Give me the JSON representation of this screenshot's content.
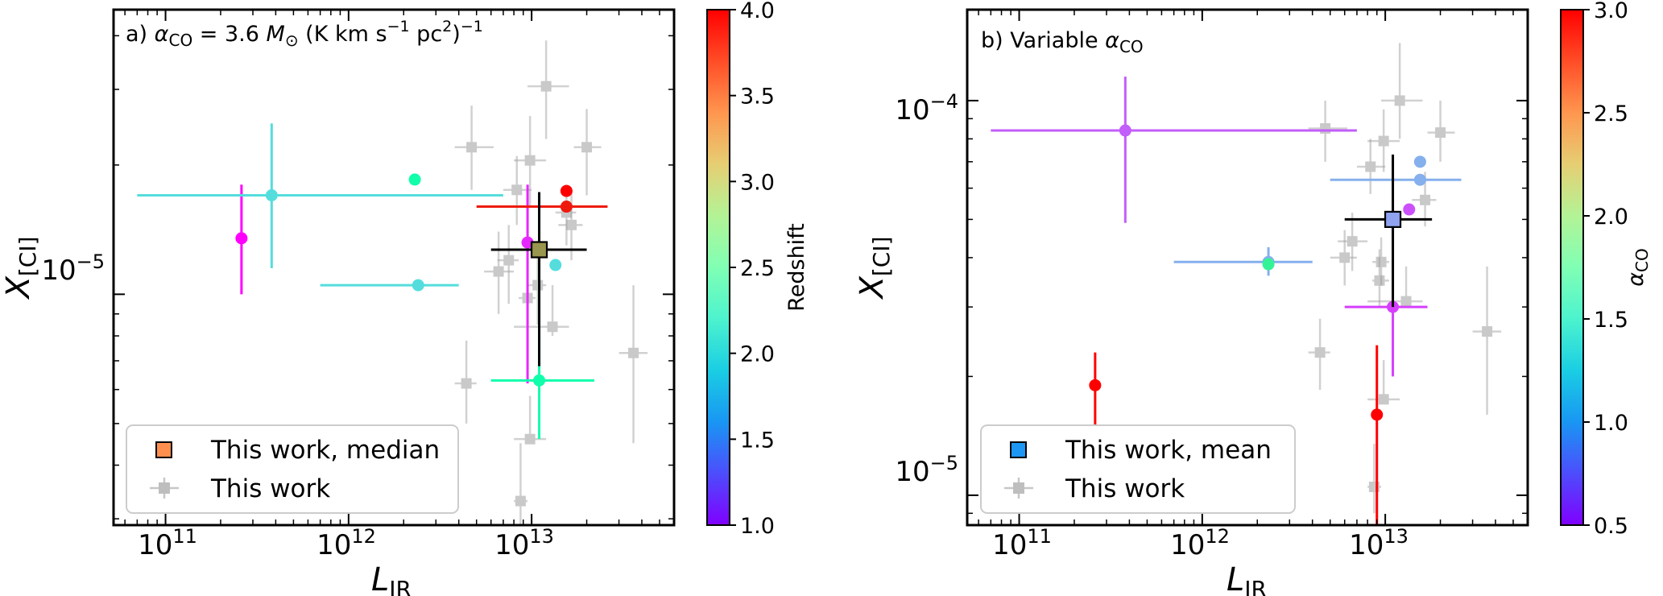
{
  "figure": {
    "panels": [
      {
        "id": "a",
        "title_prefix": "a) ",
        "title_alpha": "α",
        "title_sub": "CO",
        "title_rest": " = 3.6 ",
        "title_M": "M",
        "title_sun": "⊙",
        "title_units": " (K km s",
        "title_unit_exp1": "−1",
        "title_units2": " pc",
        "title_unit_exp2": "2",
        "title_units3": ")",
        "title_unit_exp3": "−1",
        "xlabel_main": "L",
        "xlabel_sub": "IR",
        "ylabel_main": "X",
        "ylabel_sub": "[CI]",
        "colorbar_label": "Redshift",
        "colorbar_ticks": [
          "1.0",
          "1.5",
          "2.0",
          "2.5",
          "3.0",
          "3.5",
          "4.0"
        ],
        "xticks": [
          {
            "base": "10",
            "exp": "11"
          },
          {
            "base": "10",
            "exp": "12"
          },
          {
            "base": "10",
            "exp": "13"
          }
        ],
        "yticks": [
          {
            "base": "10",
            "exp": "−5"
          }
        ],
        "legend": [
          "This work, median",
          "This work"
        ]
      },
      {
        "id": "b",
        "title_prefix": "b) Variable ",
        "title_alpha": "α",
        "title_sub": "CO",
        "xlabel_main": "L",
        "xlabel_sub": "IR",
        "ylabel_main": "X",
        "ylabel_sub": "[CI]",
        "colorbar_label_main": "α",
        "colorbar_label_sub": "CO",
        "colorbar_ticks": [
          "0.5",
          "1.0",
          "1.5",
          "2.0",
          "2.5",
          "3.0"
        ],
        "xticks": [
          {
            "base": "10",
            "exp": "11"
          },
          {
            "base": "10",
            "exp": "12"
          },
          {
            "base": "10",
            "exp": "13"
          }
        ],
        "yticks": [
          {
            "base": "10",
            "exp": "−5"
          },
          {
            "base": "10",
            "exp": "−4"
          }
        ],
        "legend": [
          "This work, mean",
          "This work"
        ]
      }
    ]
  },
  "chart_data": [
    {
      "type": "scatter",
      "title": "a) αCO = 3.6 M⊙ (K km s−1 pc2)−1",
      "xlabel": "L_IR",
      "ylabel": "X_[CI]",
      "xscale": "log",
      "yscale": "log",
      "xlim": [
        52000000000.0,
        60000000000000.0
      ],
      "ylim": [
        2.9e-06,
        4.6e-05
      ],
      "colorbar": {
        "label": "Redshift",
        "range": [
          1.0,
          4.0
        ]
      },
      "legend_position": "lower-left",
      "colored_points": [
        {
          "x": 260000000000.0,
          "y": 1.35e-05,
          "xerr": [
            0,
            0
          ],
          "yerr": [
            1e-05,
            1.8e-05
          ],
          "c": 1.0
        },
        {
          "x": 380000000000.0,
          "y": 1.7e-05,
          "xerr": [
            70000000000.0,
            7000000000000.0
          ],
          "yerr": [
            1.15e-05,
            2.5e-05
          ],
          "c": 2.0
        },
        {
          "x": 2400000000000.0,
          "y": 1.05e-05,
          "xerr": [
            700000000000.0,
            4000000000000.0
          ],
          "yerr": [
            0,
            0
          ],
          "c": 2.0
        },
        {
          "x": 2300000000000.0,
          "y": 1.85e-05,
          "xerr": [
            0,
            0
          ],
          "yerr": [
            0,
            0
          ],
          "c": 2.6
        },
        {
          "x": 9500000000000.0,
          "y": 1.32e-05,
          "xerr": [
            0,
            0
          ],
          "yerr": [
            6.2e-06,
            1.8e-05
          ],
          "c": 1.15
        },
        {
          "x": 15500000000000.0,
          "y": 1.6e-05,
          "xerr": [
            5000000000000.0,
            26000000000000.0
          ],
          "yerr": [
            0,
            0
          ],
          "c": 3.9
        },
        {
          "x": 15500000000000.0,
          "y": 1.74e-05,
          "xerr": [
            0,
            0
          ],
          "yerr": [
            0,
            0
          ],
          "c": 4.0
        },
        {
          "x": 13500000000000.0,
          "y": 1.17e-05,
          "xerr": [
            0,
            0
          ],
          "yerr": [
            0,
            0
          ],
          "c": 2.0
        },
        {
          "x": 11000000000000.0,
          "y": 6.3e-06,
          "xerr": [
            6000000000000.0,
            22000000000000.0
          ],
          "yerr": [
            4.6e-06,
            8e-06
          ],
          "c": 2.6
        }
      ],
      "median": {
        "x": 11000000000000.0,
        "y": 1.27e-05,
        "xerr": [
          6000000000000.0,
          20000000000000.0
        ],
        "yerr": [
          6.8e-06,
          1.73e-05
        ],
        "c": 3.4
      },
      "gray_points": [
        {
          "x": 12000000000000.0,
          "y": 3.05e-05,
          "xerr": [
            9500000000000.0,
            16000000000000.0
          ],
          "yerr": [
            2.3e-05,
            3.9e-05
          ]
        },
        {
          "x": 4700000000000.0,
          "y": 2.2e-05,
          "xerr": [
            3800000000000.0,
            6200000000000.0
          ],
          "yerr": [
            1.75e-05,
            2.75e-05
          ]
        },
        {
          "x": 20000000000000.0,
          "y": 2.2e-05,
          "xerr": [
            17000000000000.0,
            24000000000000.0
          ],
          "yerr": [
            1.7e-05,
            2.7e-05
          ]
        },
        {
          "x": 9800000000000.0,
          "y": 2.05e-05,
          "xerr": [
            8000000000000.0,
            12000000000000.0
          ],
          "yerr": [
            1.6e-05,
            2.6e-05
          ]
        },
        {
          "x": 8300000000000.0,
          "y": 1.75e-05,
          "xerr": [
            7000000000000.0,
            10000000000000.0
          ],
          "yerr": [
            1.45e-05,
            2.1e-05
          ]
        },
        {
          "x": 16500000000000.0,
          "y": 1.45e-05,
          "xerr": [
            14000000000000.0,
            19000000000000.0
          ],
          "yerr": [
            1.2e-05,
            1.75e-05
          ]
        },
        {
          "x": 15500000000000.0,
          "y": 1.55e-05,
          "xerr": [
            13500000000000.0,
            17500000000000.0
          ],
          "yerr": [
            1.3e-05,
            1.8e-05
          ]
        },
        {
          "x": 6600000000000.0,
          "y": 1.13e-05,
          "xerr": [
            5500000000000.0,
            8000000000000.0
          ],
          "yerr": [
            9e-06,
            1.4e-05
          ]
        },
        {
          "x": 7500000000000.0,
          "y": 1.2e-05,
          "xerr": [
            6500000000000.0,
            8500000000000.0
          ],
          "yerr": [
            9.5e-06,
            1.45e-05
          ]
        },
        {
          "x": 10800000000000.0,
          "y": 1.05e-05,
          "xerr": [
            9500000000000.0,
            12000000000000.0
          ],
          "yerr": [
            8.5e-06,
            1.3e-05
          ]
        },
        {
          "x": 9500000000000.0,
          "y": 9.8e-06,
          "xerr": [
            8500000000000.0,
            10500000000000.0
          ],
          "yerr": [
            9e-06,
            1.2e-05
          ]
        },
        {
          "x": 13000000000000.0,
          "y": 8.4e-06,
          "xerr": [
            8000000000000.0,
            16000000000000.0
          ],
          "yerr": [
            8e-06,
            1.05e-05
          ]
        },
        {
          "x": 4400000000000.0,
          "y": 6.2e-06,
          "xerr": [
            3800000000000.0,
            5000000000000.0
          ],
          "yerr": [
            5e-06,
            7.8e-06
          ]
        },
        {
          "x": 9800000000000.0,
          "y": 4.6e-06,
          "xerr": [
            8000000000000.0,
            12000000000000.0
          ],
          "yerr": [
            4.5e-06,
            5.8e-06
          ]
        },
        {
          "x": 8700000000000.0,
          "y": 3.3e-06,
          "xerr": [
            8000000000000.0,
            9500000000000.0
          ],
          "yerr": [
            2.9e-06,
            4.5e-06
          ]
        },
        {
          "x": 36000000000000.0,
          "y": 7.3e-06,
          "xerr": [
            30000000000000.0,
            43000000000000.0
          ],
          "yerr": [
            4.5e-06,
            1.05e-05
          ]
        }
      ]
    },
    {
      "type": "scatter",
      "title": "b) Variable αCO",
      "xlabel": "L_IR",
      "ylabel": "X_[CI]",
      "xscale": "log",
      "yscale": "log",
      "xlim": [
        52000000000.0,
        60000000000000.0
      ],
      "ylim": [
        8.4e-06,
        0.00017
      ],
      "colorbar": {
        "label": "αCO",
        "range": [
          0.5,
          3.0
        ]
      },
      "legend_position": "lower-left",
      "colored_points": [
        {
          "x": 380000000000.0,
          "y": 8.4e-05,
          "xerr": [
            70000000000.0,
            7000000000000.0
          ],
          "yerr": [
            4.9e-05,
            0.000115
          ],
          "c": 0.8
        },
        {
          "x": 260000000000.0,
          "y": 1.9e-05,
          "xerr": [
            0,
            0
          ],
          "yerr": [
            1.5e-05,
            2.3e-05
          ],
          "c": 3.0
        },
        {
          "x": 2300000000000.0,
          "y": 3.9e-05,
          "xerr": [
            700000000000.0,
            4000000000000.0
          ],
          "yerr": [
            3.6e-05,
            4.25e-05
          ],
          "c": 1.1
        },
        {
          "x": 2300000000000.0,
          "y": 3.85e-05,
          "xerr": [
            0,
            0
          ],
          "yerr": [
            0,
            0
          ],
          "c": 2.0
        },
        {
          "x": 15500000000000.0,
          "y": 7e-05,
          "xerr": [
            0,
            0
          ],
          "yerr": [
            0,
            0
          ],
          "c": 1.1
        },
        {
          "x": 15500000000000.0,
          "y": 6.3e-05,
          "xerr": [
            5000000000000.0,
            26000000000000.0
          ],
          "yerr": [
            0,
            0
          ],
          "c": 1.1
        },
        {
          "x": 13500000000000.0,
          "y": 5.3e-05,
          "xerr": [
            0,
            0
          ],
          "yerr": [
            0,
            0
          ],
          "c": 0.75
        },
        {
          "x": 11000000000000.0,
          "y": 3e-05,
          "xerr": [
            6000000000000.0,
            17000000000000.0
          ],
          "yerr": [
            2e-05,
            5.6e-05
          ],
          "c": 0.7
        },
        {
          "x": 9000000000000.0,
          "y": 1.6e-05,
          "xerr": [
            0,
            0
          ],
          "yerr": [
            8.4e-06,
            2.4e-05
          ],
          "c": 3.0
        }
      ],
      "mean": {
        "x": 11000000000000.0,
        "y": 5e-05,
        "xerr": [
          6000000000000.0,
          18000000000000.0
        ],
        "yerr": [
          3e-05,
          7.3e-05
        ],
        "c": 1.05
      },
      "gray_points": [
        {
          "x": 12000000000000.0,
          "y": 0.0001,
          "xerr": [
            9500000000000.0,
            16000000000000.0
          ],
          "yerr": [
            8e-05,
            0.00014
          ]
        },
        {
          "x": 4700000000000.0,
          "y": 8.5e-05,
          "xerr": [
            3800000000000.0,
            6200000000000.0
          ],
          "yerr": [
            7e-05,
            0.0001
          ]
        },
        {
          "x": 20000000000000.0,
          "y": 8.3e-05,
          "xerr": [
            17000000000000.0,
            24000000000000.0
          ],
          "yerr": [
            7e-05,
            0.0001
          ]
        },
        {
          "x": 9800000000000.0,
          "y": 7.9e-05,
          "xerr": [
            8000000000000.0,
            12000000000000.0
          ],
          "yerr": [
            6.6e-05,
            9.5e-05
          ]
        },
        {
          "x": 8300000000000.0,
          "y": 6.8e-05,
          "xerr": [
            7000000000000.0,
            10000000000000.0
          ],
          "yerr": [
            5.8e-05,
            8e-05
          ]
        },
        {
          "x": 16500000000000.0,
          "y": 5.6e-05,
          "xerr": [
            14000000000000.0,
            19000000000000.0
          ],
          "yerr": [
            4.8e-05,
            6.6e-05
          ]
        },
        {
          "x": 6600000000000.0,
          "y": 4.4e-05,
          "xerr": [
            5500000000000.0,
            8000000000000.0
          ],
          "yerr": [
            3.7e-05,
            5.2e-05
          ]
        },
        {
          "x": 6000000000000.0,
          "y": 4e-05,
          "xerr": [
            5000000000000.0,
            7000000000000.0
          ],
          "yerr": [
            3.4e-05,
            4.7e-05
          ]
        },
        {
          "x": 9500000000000.0,
          "y": 3.9e-05,
          "xerr": [
            8500000000000.0,
            10500000000000.0
          ],
          "yerr": [
            3.4e-05,
            4.5e-05
          ]
        },
        {
          "x": 9300000000000.0,
          "y": 3.5e-05,
          "xerr": [
            8500000000000.0,
            10500000000000.0
          ],
          "yerr": [
            3e-05,
            4.2e-05
          ]
        },
        {
          "x": 13000000000000.0,
          "y": 3.1e-05,
          "xerr": [
            8000000000000.0,
            16000000000000.0
          ],
          "yerr": [
            3e-05,
            3.8e-05
          ]
        },
        {
          "x": 4400000000000.0,
          "y": 2.3e-05,
          "xerr": [
            3800000000000.0,
            5000000000000.0
          ],
          "yerr": [
            1.85e-05,
            2.8e-05
          ]
        },
        {
          "x": 9800000000000.0,
          "y": 1.75e-05,
          "xerr": [
            8000000000000.0,
            12000000000000.0
          ],
          "yerr": [
            1.7e-05,
            2.2e-05
          ]
        },
        {
          "x": 8700000000000.0,
          "y": 1.05e-05,
          "xerr": [
            8000000000000.0,
            9500000000000.0
          ],
          "yerr": [
            9e-06,
            1.35e-05
          ]
        },
        {
          "x": 36000000000000.0,
          "y": 2.6e-05,
          "xerr": [
            30000000000000.0,
            43000000000000.0
          ],
          "yerr": [
            1.6e-05,
            3.8e-05
          ]
        }
      ]
    }
  ]
}
